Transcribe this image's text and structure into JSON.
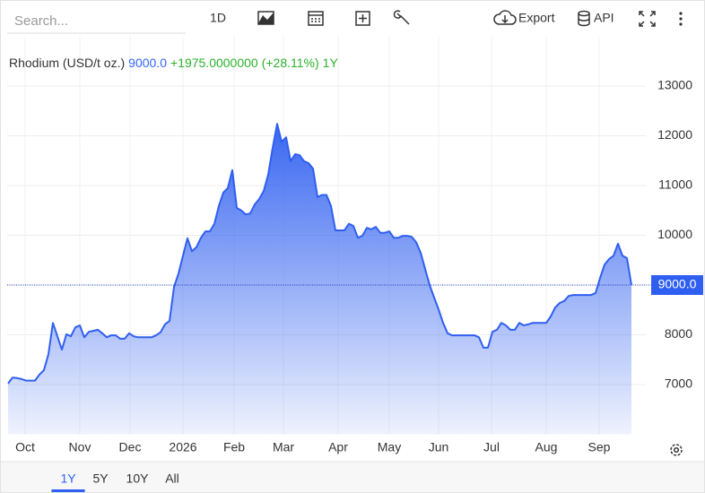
{
  "toolbar": {
    "search_placeholder": "Search...",
    "interval": "1D",
    "export": "Export",
    "api": "API"
  },
  "chart_data": {
    "type": "area",
    "title": "Rhodium (USD/t oz.)",
    "last_price": {
      "value": 9000,
      "label": "9000.0"
    },
    "change": "+1975.0000000",
    "change_percent": "(+28.11%)",
    "period": "1Y",
    "color": "#2f5ff0",
    "grid": true,
    "values": [
      7020,
      7140,
      7130,
      7110,
      7080,
      7080,
      7080,
      7200,
      7290,
      7610,
      8240,
      7970,
      7700,
      8010,
      7970,
      8150,
      8190,
      7950,
      8060,
      8080,
      8100,
      8030,
      7950,
      7990,
      7990,
      7920,
      7920,
      8030,
      7970,
      7950,
      7950,
      7950,
      7950,
      7990,
      8050,
      8210,
      8280,
      8960,
      9230,
      9590,
      9940,
      9680,
      9760,
      9950,
      10080,
      10080,
      10230,
      10590,
      10860,
      10950,
      11310,
      10550,
      10500,
      10420,
      10440,
      10620,
      10730,
      10890,
      11220,
      11760,
      12240,
      11880,
      11970,
      11490,
      11630,
      11610,
      11490,
      11450,
      11340,
      10770,
      10810,
      10810,
      10590,
      10100,
      10100,
      10100,
      10230,
      10190,
      9950,
      9990,
      10150,
      10120,
      10170,
      10050,
      10050,
      10080,
      9950,
      9950,
      9990,
      9990,
      9970,
      9860,
      9650,
      9320,
      9000,
      8750,
      8510,
      8240,
      8030,
      7990,
      7990,
      7990,
      7990,
      7990,
      7990,
      7950,
      7740,
      7740,
      8060,
      8100,
      8240,
      8190,
      8100,
      8100,
      8240,
      8190,
      8210,
      8240,
      8240,
      8240,
      8240,
      8370,
      8550,
      8640,
      8680,
      8780,
      8800,
      8800,
      8800,
      8800,
      8800,
      8840,
      9140,
      9410,
      9520,
      9590,
      9830,
      9590,
      9540,
      9000
    ],
    "xlim": [
      -0.2,
      142.2
    ],
    "xticks": [
      {
        "value": 3.8,
        "label": "Oct"
      },
      {
        "value": 16,
        "label": "Nov"
      },
      {
        "value": 27.2,
        "label": "Dec"
      },
      {
        "value": 39,
        "label": "2026"
      },
      {
        "value": 50.4,
        "label": "Feb"
      },
      {
        "value": 61.4,
        "label": "Mar"
      },
      {
        "value": 73.6,
        "label": "Apr"
      },
      {
        "value": 85,
        "label": "May"
      },
      {
        "value": 96,
        "label": "Jun"
      },
      {
        "value": 107.8,
        "label": "Jul"
      },
      {
        "value": 120,
        "label": "Aug"
      },
      {
        "value": 131.8,
        "label": "Sep"
      }
    ],
    "ylim": [
      6000,
      14000
    ],
    "yticks": [
      7000,
      8000,
      9000,
      10000,
      11000,
      12000,
      13000
    ]
  },
  "range_buttons": [
    "1Y",
    "5Y",
    "10Y",
    "All"
  ],
  "selected_range_index": 0
}
